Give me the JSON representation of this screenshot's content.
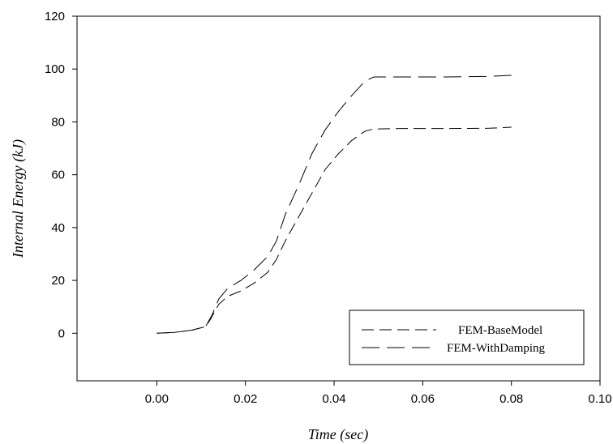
{
  "chart_data": {
    "type": "line",
    "title": "",
    "xlabel": "Time (sec)",
    "ylabel": "Internal Energy (kJ)",
    "xlim": [
      -0.018,
      0.1
    ],
    "ylim": [
      -18,
      120
    ],
    "x_ticks": [
      0.0,
      0.02,
      0.04,
      0.06,
      0.08,
      0.1
    ],
    "x_tick_labels": [
      "0.00",
      "0.02",
      "0.04",
      "0.06",
      "0.08",
      "0.10"
    ],
    "y_ticks": [
      0,
      20,
      40,
      60,
      80,
      100,
      120
    ],
    "y_tick_labels": [
      "0",
      "20",
      "40",
      "60",
      "80",
      "100",
      "120"
    ],
    "grid": false,
    "legend_position": "bottom-right",
    "series": [
      {
        "name": "FEM-BaseModel",
        "dash": "long-dash",
        "points": [
          [
            0.0,
            0
          ],
          [
            0.004,
            0.3
          ],
          [
            0.008,
            1.2
          ],
          [
            0.011,
            2.5
          ],
          [
            0.012,
            5
          ],
          [
            0.014,
            11
          ],
          [
            0.016,
            14
          ],
          [
            0.019,
            16
          ],
          [
            0.022,
            19
          ],
          [
            0.025,
            23
          ],
          [
            0.027,
            28
          ],
          [
            0.029,
            35
          ],
          [
            0.032,
            44
          ],
          [
            0.035,
            53
          ],
          [
            0.038,
            62
          ],
          [
            0.041,
            68
          ],
          [
            0.044,
            73
          ],
          [
            0.047,
            76.5
          ],
          [
            0.049,
            77.3
          ],
          [
            0.055,
            77.5
          ],
          [
            0.065,
            77.5
          ],
          [
            0.075,
            77.6
          ],
          [
            0.08,
            78
          ]
        ]
      },
      {
        "name": "FEM-WithDamping",
        "dash": "long-dash",
        "points": [
          [
            0.0,
            0
          ],
          [
            0.004,
            0.3
          ],
          [
            0.008,
            1.2
          ],
          [
            0.011,
            2.5
          ],
          [
            0.0125,
            7
          ],
          [
            0.014,
            13
          ],
          [
            0.016,
            17
          ],
          [
            0.019,
            20
          ],
          [
            0.022,
            24
          ],
          [
            0.025,
            29
          ],
          [
            0.027,
            35
          ],
          [
            0.029,
            45
          ],
          [
            0.032,
            56
          ],
          [
            0.035,
            68
          ],
          [
            0.038,
            77
          ],
          [
            0.041,
            84
          ],
          [
            0.044,
            90
          ],
          [
            0.047,
            95.5
          ],
          [
            0.049,
            97
          ],
          [
            0.055,
            97
          ],
          [
            0.065,
            97
          ],
          [
            0.075,
            97.2
          ],
          [
            0.08,
            97.6
          ]
        ]
      }
    ]
  }
}
